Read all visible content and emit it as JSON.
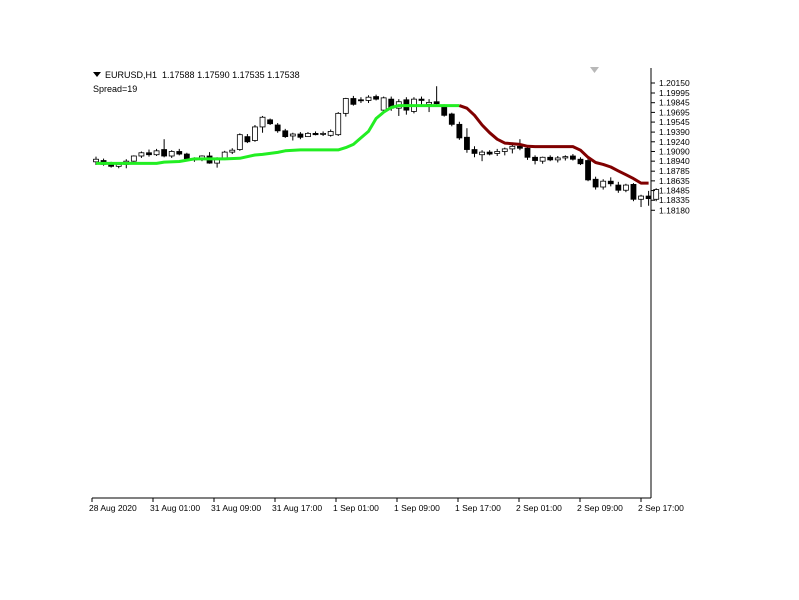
{
  "header": {
    "symbol": "EURUSD,H1",
    "quote": "1.17588 1.17590 1.17535 1.17538",
    "spread": "Spread=19"
  },
  "colors": {
    "bull_candle": "#ffffff",
    "bear_candle": "#000000",
    "uptrend_line": "#22ee22",
    "downtrend_line": "#800000",
    "axis": "#000000"
  },
  "chart_data": {
    "type": "line",
    "title": "",
    "ylim": [
      1.1818,
      1.2025
    ],
    "y_ticks": [
      "1.20150",
      "1.19995",
      "1.19845",
      "1.19695",
      "1.19545",
      "1.19390",
      "1.19240",
      "1.19090",
      "1.18940",
      "1.18785",
      "1.18635",
      "1.18485",
      "1.18335",
      "1.18180"
    ],
    "x_ticks": [
      "28 Aug 2020",
      "31 Aug 01:00",
      "31 Aug 09:00",
      "31 Aug 17:00",
      "1 Sep 01:00",
      "1 Sep 09:00",
      "1 Sep 17:00",
      "2 Sep 01:00",
      "2 Sep 09:00",
      "2 Sep 17:00"
    ],
    "grid": false,
    "candles": [
      [
        1.1893,
        1.1901,
        1.1888,
        1.1897
      ],
      [
        1.1895,
        1.1898,
        1.1887,
        1.1889
      ],
      [
        1.189,
        1.1893,
        1.1884,
        1.1886
      ],
      [
        1.1886,
        1.1892,
        1.1883,
        1.1889
      ],
      [
        1.1889,
        1.1897,
        1.1883,
        1.1894
      ],
      [
        1.1894,
        1.1903,
        1.1893,
        1.1902
      ],
      [
        1.1902,
        1.1909,
        1.1899,
        1.1907
      ],
      [
        1.1907,
        1.1912,
        1.1901,
        1.1904
      ],
      [
        1.1904,
        1.1913,
        1.1902,
        1.191
      ],
      [
        1.1912,
        1.1928,
        1.19,
        1.1902
      ],
      [
        1.1902,
        1.1911,
        1.1899,
        1.1909
      ],
      [
        1.1909,
        1.1913,
        1.1903,
        1.1905
      ],
      [
        1.1905,
        1.1907,
        1.1895,
        1.1898
      ],
      [
        1.1898,
        1.19,
        1.1893,
        1.1896
      ],
      [
        1.1898,
        1.1903,
        1.1894,
        1.1902
      ],
      [
        1.1902,
        1.1908,
        1.189,
        1.1891
      ],
      [
        1.1891,
        1.19,
        1.1884,
        1.1898
      ],
      [
        1.1899,
        1.191,
        1.1896,
        1.1908
      ],
      [
        1.1908,
        1.1914,
        1.1905,
        1.1911
      ],
      [
        1.1912,
        1.1937,
        1.191,
        1.1935
      ],
      [
        1.1932,
        1.1936,
        1.1922,
        1.1924
      ],
      [
        1.1926,
        1.195,
        1.1924,
        1.1947
      ],
      [
        1.1947,
        1.1964,
        1.1938,
        1.1962
      ],
      [
        1.1958,
        1.196,
        1.195,
        1.1952
      ],
      [
        1.195,
        1.1953,
        1.1938,
        1.1941
      ],
      [
        1.1941,
        1.1944,
        1.193,
        1.1932
      ],
      [
        1.1933,
        1.1938,
        1.1926,
        1.1936
      ],
      [
        1.1936,
        1.1939,
        1.1928,
        1.1931
      ],
      [
        1.1932,
        1.1939,
        1.1932,
        1.1937
      ],
      [
        1.1937,
        1.194,
        1.1934,
        1.1935
      ],
      [
        1.1936,
        1.194,
        1.1933,
        1.1937
      ],
      [
        1.1934,
        1.1943,
        1.1932,
        1.194
      ],
      [
        1.1935,
        1.197,
        1.1933,
        1.1968
      ],
      [
        1.1968,
        1.1992,
        1.1963,
        1.1991
      ],
      [
        1.1991,
        1.1995,
        1.198,
        1.1982
      ],
      [
        1.1989,
        1.1993,
        1.1984,
        1.1988
      ],
      [
        1.1988,
        1.1996,
        1.1984,
        1.1993
      ],
      [
        1.1994,
        1.1997,
        1.1988,
        1.199
      ],
      [
        1.1973,
        1.1994,
        1.197,
        1.1992
      ],
      [
        1.199,
        1.1994,
        1.1972,
        1.1976
      ],
      [
        1.1976,
        1.199,
        1.1964,
        1.1986
      ],
      [
        1.1989,
        1.1993,
        1.1966,
        1.1973
      ],
      [
        1.1971,
        1.1993,
        1.1968,
        1.199
      ],
      [
        1.199,
        1.1994,
        1.198,
        1.1988
      ],
      [
        1.1982,
        1.199,
        1.197,
        1.1985
      ],
      [
        1.1986,
        1.201,
        1.198,
        1.1983
      ],
      [
        1.198,
        1.1982,
        1.1963,
        1.1965
      ],
      [
        1.1967,
        1.1969,
        1.1948,
        1.1951
      ],
      [
        1.1951,
        1.1955,
        1.1927,
        1.193
      ],
      [
        1.1931,
        1.1945,
        1.1907,
        1.1912
      ],
      [
        1.1912,
        1.1917,
        1.19,
        1.1906
      ],
      [
        1.1904,
        1.1911,
        1.1894,
        1.1908
      ],
      [
        1.1908,
        1.1911,
        1.1903,
        1.1905
      ],
      [
        1.1906,
        1.1913,
        1.1902,
        1.1909
      ],
      [
        1.1909,
        1.1915,
        1.1903,
        1.1913
      ],
      [
        1.1913,
        1.1923,
        1.1906,
        1.1917
      ],
      [
        1.1917,
        1.1928,
        1.1911,
        1.1914
      ],
      [
        1.1914,
        1.1917,
        1.1896,
        1.19
      ],
      [
        1.19,
        1.1903,
        1.1889,
        1.1895
      ],
      [
        1.1894,
        1.1901,
        1.189,
        1.19
      ],
      [
        1.19,
        1.1903,
        1.1894,
        1.1896
      ],
      [
        1.1896,
        1.1902,
        1.1892,
        1.1899
      ],
      [
        1.1899,
        1.1903,
        1.1895,
        1.1901
      ],
      [
        1.1902,
        1.1905,
        1.1895,
        1.1897
      ],
      [
        1.1897,
        1.19,
        1.1888,
        1.189
      ],
      [
        1.1895,
        1.1898,
        1.1863,
        1.1865
      ],
      [
        1.1866,
        1.187,
        1.185,
        1.1854
      ],
      [
        1.1854,
        1.1866,
        1.185,
        1.1863
      ],
      [
        1.1863,
        1.1869,
        1.1855,
        1.1859
      ],
      [
        1.1857,
        1.1862,
        1.1845,
        1.1849
      ],
      [
        1.1849,
        1.1859,
        1.1846,
        1.1857
      ],
      [
        1.1858,
        1.186,
        1.1832,
        1.1835
      ],
      [
        1.1835,
        1.1842,
        1.1823,
        1.184
      ],
      [
        1.184,
        1.1848,
        1.1825,
        1.1836
      ],
      [
        1.1835,
        1.1852,
        1.1832,
        1.185
      ]
    ],
    "series": [
      {
        "color": "#22ee22",
        "values": [
          [
            0,
            1.18905
          ],
          [
            8,
            1.18905
          ],
          [
            9,
            1.18925
          ],
          [
            11,
            1.18935
          ],
          [
            13,
            1.18975
          ],
          [
            17,
            1.18975
          ],
          [
            19,
            1.18985
          ],
          [
            21,
            1.19035
          ],
          [
            22,
            1.19045
          ],
          [
            24,
            1.19075
          ],
          [
            25,
            1.191
          ],
          [
            27,
            1.19115
          ],
          [
            32,
            1.19115
          ],
          [
            33,
            1.1915
          ],
          [
            34,
            1.192
          ],
          [
            35,
            1.193
          ],
          [
            36,
            1.194
          ],
          [
            37,
            1.196
          ],
          [
            38,
            1.197
          ],
          [
            39,
            1.1977
          ],
          [
            40,
            1.198
          ],
          [
            44,
            1.198
          ],
          [
            48,
            1.198
          ]
        ]
      },
      {
        "color": "#800000",
        "values": [
          [
            48,
            1.198
          ],
          [
            49,
            1.1976
          ],
          [
            50,
            1.1965
          ],
          [
            51,
            1.195
          ],
          [
            52,
            1.1938
          ],
          [
            53,
            1.1928
          ],
          [
            54,
            1.1922
          ],
          [
            55,
            1.1921
          ],
          [
            56,
            1.192
          ],
          [
            57,
            1.1917
          ],
          [
            58,
            1.19165
          ],
          [
            63,
            1.19165
          ],
          [
            64,
            1.1911
          ],
          [
            65,
            1.19
          ],
          [
            66,
            1.1892
          ],
          [
            67,
            1.1889
          ],
          [
            68,
            1.1885
          ],
          [
            69,
            1.1879
          ],
          [
            70,
            1.1873
          ],
          [
            71,
            1.1867
          ],
          [
            72,
            1.186
          ],
          [
            73,
            1.186
          ]
        ]
      }
    ]
  }
}
